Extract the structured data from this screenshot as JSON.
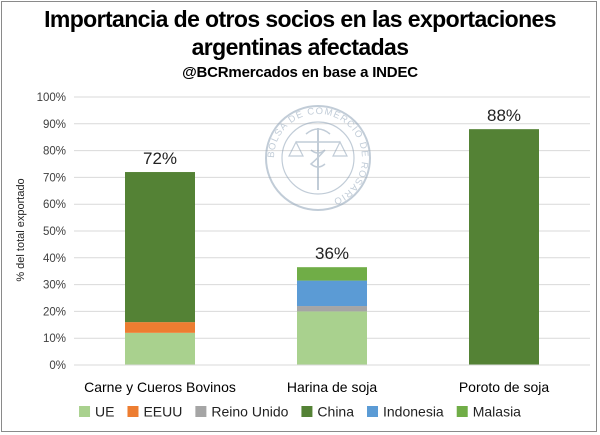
{
  "chart_data": {
    "type": "bar",
    "stacked": true,
    "title": "Importancia de otros socios en las exportaciones argentinas afectadas",
    "title_line1": "Importancia de otros socios en las exportaciones",
    "title_line2": "argentinas afectadas",
    "subtitle": "@BCRmercados en base a INDEC",
    "ylabel": "% del total exportado",
    "xlabel": "",
    "ylim": [
      0,
      100
    ],
    "yticks": [
      "0%",
      "10%",
      "20%",
      "30%",
      "40%",
      "50%",
      "60%",
      "70%",
      "80%",
      "90%",
      "100%"
    ],
    "grid": true,
    "legend": "bottom",
    "categories": [
      "Carne y Cueros Bovinos",
      "Harina de soja",
      "Poroto de soja"
    ],
    "totals_labels": [
      "72%",
      "36%",
      "88%"
    ],
    "series": [
      {
        "name": "UE",
        "color": "#a9d18e",
        "values": [
          12,
          20,
          0
        ]
      },
      {
        "name": "EEUU",
        "color": "#ed7d31",
        "values": [
          4,
          0,
          0
        ]
      },
      {
        "name": "Reino Unido",
        "color": "#a5a5a5",
        "values": [
          0,
          2,
          0
        ]
      },
      {
        "name": "China",
        "color": "#548235",
        "values": [
          56,
          0,
          88
        ]
      },
      {
        "name": "Indonesia",
        "color": "#5b9bd5",
        "values": [
          0,
          9.5,
          0
        ]
      },
      {
        "name": "Malasia",
        "color": "#70ad47",
        "values": [
          0,
          5,
          0
        ]
      }
    ]
  },
  "watermark": {
    "text": "BOLSA DE COMERCIO DE ROSARIO",
    "icon": "caduceus-scales-seal-icon"
  }
}
